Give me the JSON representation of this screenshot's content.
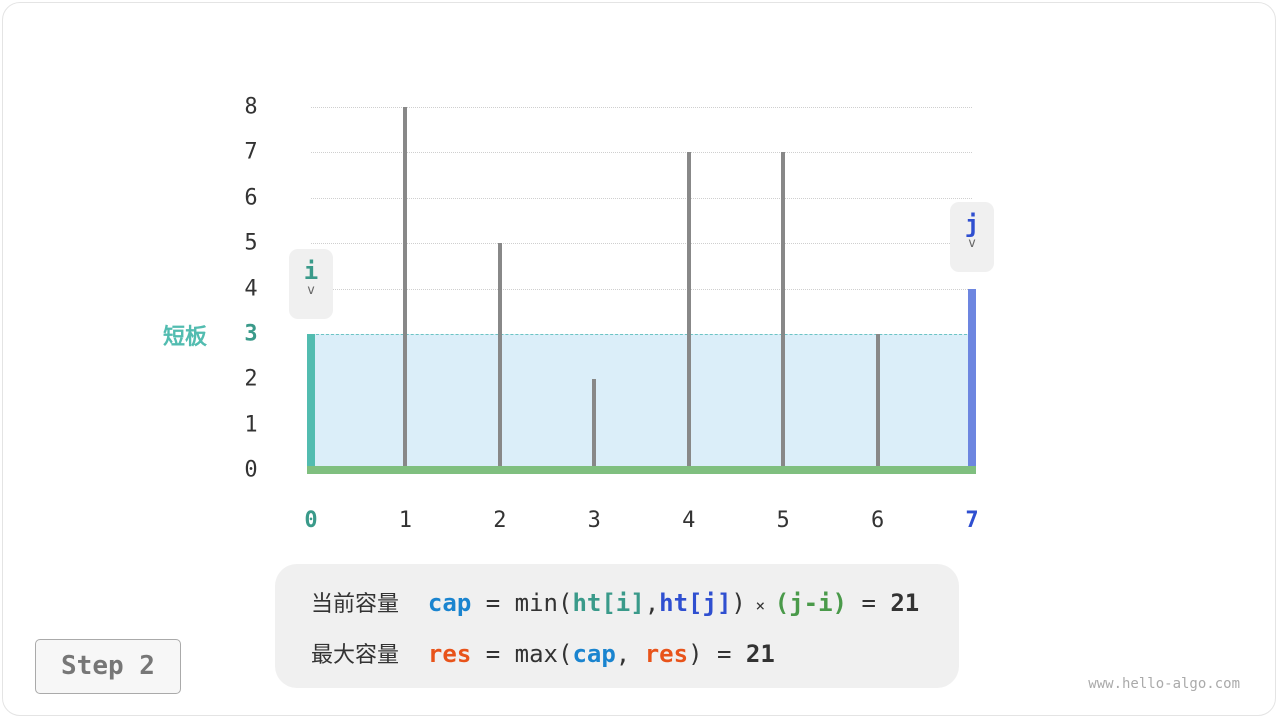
{
  "chart_data": {
    "type": "bar",
    "categories": [
      "0",
      "1",
      "2",
      "3",
      "4",
      "5",
      "6",
      "7"
    ],
    "values": [
      3,
      8,
      5,
      2,
      7,
      7,
      3,
      4
    ],
    "yticks": [
      "0",
      "1",
      "2",
      "3",
      "4",
      "5",
      "6",
      "7",
      "8"
    ],
    "ylim": [
      0,
      8
    ],
    "grid": true
  },
  "pointers": {
    "i": {
      "label": "i",
      "index": 0,
      "arrow": "v"
    },
    "j": {
      "label": "j",
      "index": 7,
      "arrow": "v"
    }
  },
  "short_board_label": "短板",
  "water_level": 3,
  "colors": {
    "i": "#3a9a8a",
    "j": "#2f4fd0",
    "i_bar": "#52bcb0",
    "j_bar": "#6d86e0",
    "base": "#7fbf7f",
    "cap": "#1a84cf",
    "res": "#e8531a",
    "width": "#4a9a4a",
    "water": "#dbeef9"
  },
  "formula": {
    "line1": {
      "label": "当前容量",
      "var": "cap",
      "eq": " = min(",
      "a": "ht[i]",
      "comma": ",",
      "b": "ht[j]",
      "close": ")",
      "times": " × ",
      "w": "(j-i)",
      "eq2": " = ",
      "result": "21"
    },
    "line2": {
      "label": "最大容量",
      "var": "res",
      "eq": " = max(",
      "a": "cap",
      "comma": ", ",
      "b": "res",
      "close": ")",
      "eq2": " = ",
      "result": "21"
    }
  },
  "step_label": "Step 2",
  "watermark": "www.hello-algo.com"
}
